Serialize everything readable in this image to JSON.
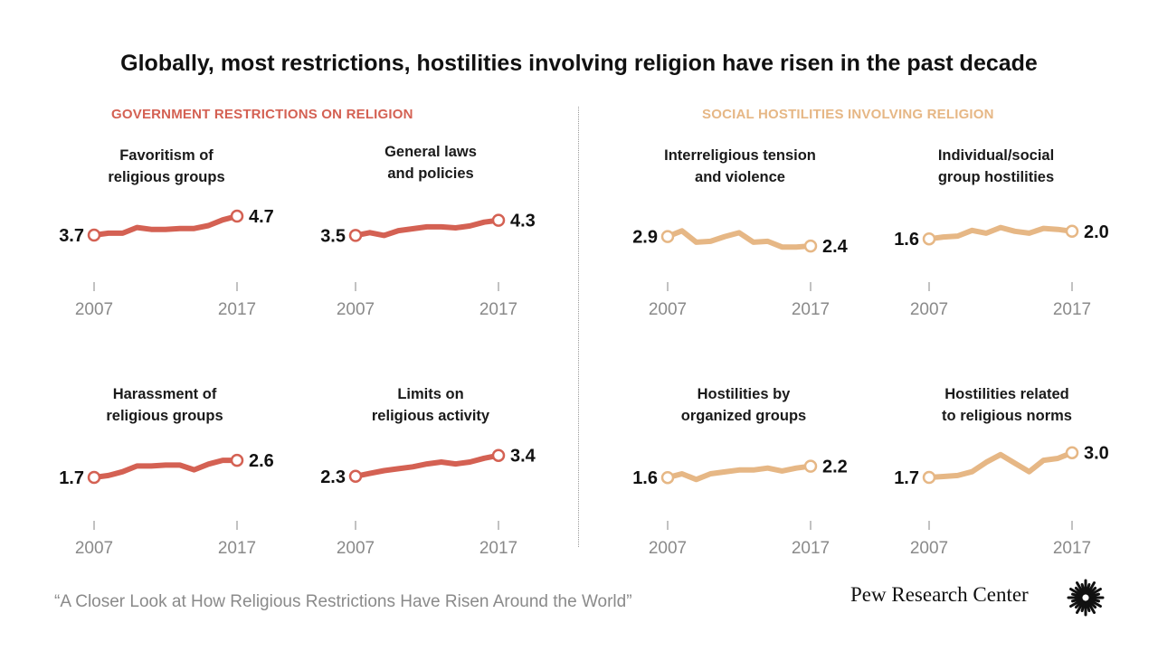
{
  "title": "Globally, most restrictions, hostilities involving religion have risen in the past decade",
  "sections": {
    "gov": {
      "label": "GOVERNMENT RESTRICTIONS ON RELIGION",
      "color": "#d46153"
    },
    "soc": {
      "label": "SOCIAL HOSTILITIES INVOLVING RELIGION",
      "color": "#e6b785"
    }
  },
  "chart_data": [
    {
      "type": "line",
      "section": "gov",
      "title_lines": [
        "Favoritism of",
        "religious groups"
      ],
      "x": [
        2007,
        2008,
        2009,
        2010,
        2011,
        2012,
        2013,
        2014,
        2015,
        2016,
        2017
      ],
      "values": [
        3.7,
        3.8,
        3.8,
        4.1,
        4.0,
        4.0,
        4.05,
        4.05,
        4.2,
        4.5,
        4.7
      ],
      "start_label": "3.7",
      "end_label": "4.7",
      "x_start_label": "2007",
      "x_end_label": "2017"
    },
    {
      "type": "line",
      "section": "gov",
      "title_lines": [
        "General laws",
        "and policies"
      ],
      "x": [
        2007,
        2008,
        2009,
        2010,
        2011,
        2012,
        2013,
        2014,
        2015,
        2016,
        2017
      ],
      "values": [
        3.5,
        3.65,
        3.5,
        3.75,
        3.85,
        3.95,
        3.95,
        3.9,
        4.0,
        4.2,
        4.3
      ],
      "start_label": "3.5",
      "end_label": "4.3",
      "x_start_label": "2007",
      "x_end_label": "2017"
    },
    {
      "type": "line",
      "section": "gov",
      "title_lines": [
        "Harassment of",
        "religious groups"
      ],
      "x": [
        2007,
        2008,
        2009,
        2010,
        2011,
        2012,
        2013,
        2014,
        2015,
        2016,
        2017
      ],
      "values": [
        1.7,
        1.8,
        2.0,
        2.3,
        2.3,
        2.35,
        2.35,
        2.1,
        2.4,
        2.6,
        2.6
      ],
      "start_label": "1.7",
      "end_label": "2.6",
      "x_start_label": "2007",
      "x_end_label": "2017"
    },
    {
      "type": "line",
      "section": "gov",
      "title_lines": [
        "Limits on",
        "religious activity"
      ],
      "x": [
        2007,
        2008,
        2009,
        2010,
        2011,
        2012,
        2013,
        2014,
        2015,
        2016,
        2017
      ],
      "values": [
        2.3,
        2.45,
        2.6,
        2.7,
        2.8,
        2.95,
        3.05,
        2.95,
        3.05,
        3.25,
        3.4
      ],
      "start_label": "2.3",
      "end_label": "3.4",
      "x_start_label": "2007",
      "x_end_label": "2017"
    },
    {
      "type": "line",
      "section": "soc",
      "title_lines": [
        "Interreligious tension",
        "and violence"
      ],
      "x": [
        2007,
        2008,
        2009,
        2010,
        2011,
        2012,
        2013,
        2014,
        2015,
        2016,
        2017
      ],
      "values": [
        2.9,
        3.2,
        2.6,
        2.65,
        2.9,
        3.1,
        2.6,
        2.65,
        2.35,
        2.35,
        2.4
      ],
      "start_label": "2.9",
      "end_label": "2.4",
      "x_start_label": "2007",
      "x_end_label": "2017"
    },
    {
      "type": "line",
      "section": "soc",
      "title_lines": [
        "Individual/social",
        "group hostilities"
      ],
      "x": [
        2007,
        2008,
        2009,
        2010,
        2011,
        2012,
        2013,
        2014,
        2015,
        2016,
        2017
      ],
      "values": [
        1.6,
        1.7,
        1.75,
        2.05,
        1.9,
        2.2,
        2.0,
        1.9,
        2.15,
        2.1,
        2.0
      ],
      "start_label": "1.6",
      "end_label": "2.0",
      "x_start_label": "2007",
      "x_end_label": "2017"
    },
    {
      "type": "line",
      "section": "soc",
      "title_lines": [
        "Hostilities by",
        "organized groups"
      ],
      "x": [
        2007,
        2008,
        2009,
        2010,
        2011,
        2012,
        2013,
        2014,
        2015,
        2016,
        2017
      ],
      "values": [
        1.6,
        1.8,
        1.5,
        1.8,
        1.9,
        2.0,
        2.0,
        2.1,
        1.95,
        2.1,
        2.2
      ],
      "start_label": "1.6",
      "end_label": "2.2",
      "x_start_label": "2007",
      "x_end_label": "2017"
    },
    {
      "type": "line",
      "section": "soc",
      "title_lines": [
        "Hostilities related",
        "to religious norms"
      ],
      "x": [
        2007,
        2008,
        2009,
        2010,
        2011,
        2012,
        2013,
        2014,
        2015,
        2016,
        2017
      ],
      "values": [
        1.7,
        1.75,
        1.8,
        2.0,
        2.5,
        2.9,
        2.45,
        2.0,
        2.6,
        2.7,
        3.0
      ],
      "start_label": "1.7",
      "end_label": "3.0",
      "x_start_label": "2007",
      "x_end_label": "2017"
    }
  ],
  "footer": {
    "source": "“A Closer Look at How Religious Restrictions Have Risen Around the World”",
    "logo_text": "Pew Research Center"
  }
}
